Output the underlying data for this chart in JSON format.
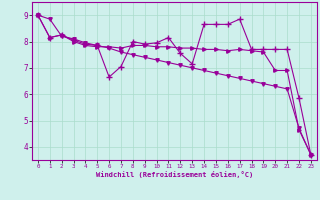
{
  "xlabel": "Windchill (Refroidissement éolien,°C)",
  "background_color": "#cff0ec",
  "line_color": "#990099",
  "grid_color": "#aaddcc",
  "xlim": [
    -0.5,
    23.5
  ],
  "ylim": [
    3.5,
    9.5
  ],
  "xticks": [
    0,
    1,
    2,
    3,
    4,
    5,
    6,
    7,
    8,
    9,
    10,
    11,
    12,
    13,
    14,
    15,
    16,
    17,
    18,
    19,
    20,
    21,
    22,
    23
  ],
  "yticks": [
    4,
    5,
    6,
    7,
    8,
    9
  ],
  "line1_x": [
    0,
    1,
    2,
    3,
    4,
    5,
    6,
    7,
    8,
    9,
    10,
    11,
    12,
    13,
    14,
    15,
    16,
    17,
    18,
    19,
    20,
    21,
    22,
    23
  ],
  "line1_y": [
    9.0,
    8.85,
    8.2,
    8.1,
    7.95,
    7.85,
    7.75,
    7.6,
    7.5,
    7.4,
    7.3,
    7.2,
    7.1,
    7.0,
    6.9,
    6.8,
    6.7,
    6.6,
    6.5,
    6.4,
    6.3,
    6.2,
    4.7,
    3.7
  ],
  "line2_x": [
    0,
    1,
    2,
    3,
    4,
    5,
    6,
    7,
    8,
    9,
    10,
    11,
    12,
    13,
    14,
    15,
    16,
    17,
    18,
    19,
    20,
    21,
    22,
    23
  ],
  "line2_y": [
    9.0,
    8.15,
    8.25,
    8.05,
    7.9,
    7.85,
    6.65,
    7.05,
    8.0,
    7.9,
    7.95,
    8.15,
    7.55,
    7.15,
    8.65,
    8.65,
    8.65,
    8.85,
    7.7,
    7.7,
    7.7,
    7.7,
    5.85,
    3.7
  ],
  "line3_x": [
    0,
    1,
    2,
    3,
    4,
    5,
    6,
    7,
    8,
    9,
    10,
    11,
    12,
    13,
    14,
    15,
    16,
    17,
    18,
    19,
    20,
    21,
    22,
    23
  ],
  "line3_y": [
    9.0,
    8.15,
    8.25,
    8.0,
    7.85,
    7.8,
    7.8,
    7.75,
    7.85,
    7.85,
    7.8,
    7.8,
    7.75,
    7.75,
    7.7,
    7.7,
    7.65,
    7.7,
    7.65,
    7.6,
    6.9,
    6.9,
    4.65,
    3.7
  ]
}
